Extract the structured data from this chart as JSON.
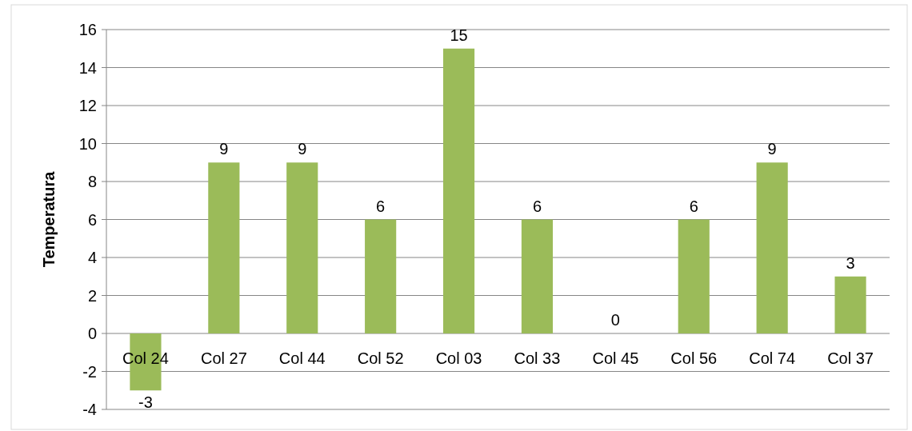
{
  "chart_data": {
    "type": "bar",
    "ylabel": "Temperatura",
    "categories": [
      "Col 24",
      "Col 27",
      "Col 44",
      "Col 52",
      "Col 03",
      "Col 33",
      "Col 45",
      "Col 56",
      "Col 74",
      "Col 37"
    ],
    "values": [
      -3,
      9,
      9,
      6,
      15,
      6,
      0,
      6,
      9,
      3
    ],
    "color": "#9bbb59",
    "ylim": [
      -4,
      16
    ],
    "yticks": [
      -4,
      -2,
      0,
      2,
      4,
      6,
      8,
      10,
      12,
      14,
      16
    ],
    "grid": "y",
    "data_labels": true
  }
}
